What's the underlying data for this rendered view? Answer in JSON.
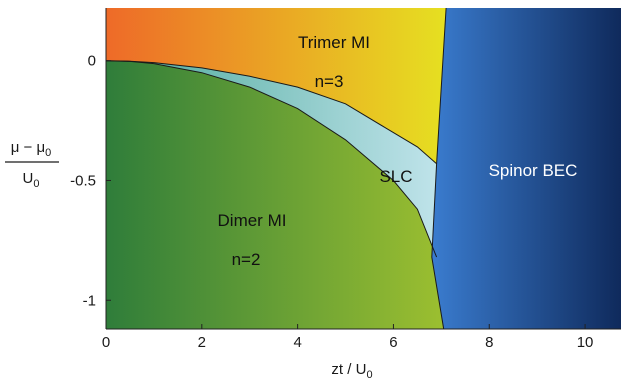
{
  "chart_data": {
    "type": "area",
    "title": "",
    "xlabel": "zt / U",
    "xlabel_sub": "0",
    "ylabel": {
      "numerator": "μ − μ",
      "numerator_sub": "0",
      "denominator": "U",
      "denominator_sub": "0"
    },
    "xlim": [
      0,
      10.75
    ],
    "ylim": [
      -1.12,
      0.22
    ],
    "xticks": [
      0,
      2,
      4,
      6,
      8,
      10
    ],
    "xtick_labels": [
      "0",
      "2",
      "4",
      "6",
      "8",
      "10"
    ],
    "yticks": [
      0,
      -0.5,
      -1
    ],
    "ytick_labels": [
      "0",
      "-0.5",
      "-1"
    ],
    "grid": false,
    "regions": [
      {
        "name": "Trimer MI",
        "label": "Trimer MI",
        "sublabel": "n=3",
        "color_start": "#ee6a28",
        "color_end": "#e6e021"
      },
      {
        "name": "Dimer MI",
        "label": "Dimer MI",
        "sublabel": "n=2",
        "color_start": "#2f7d3a",
        "color_end": "#9cbf30"
      },
      {
        "name": "SLC",
        "label": "SLC",
        "color_start": "#4aa89a",
        "color_end": "#bfe3ea"
      },
      {
        "name": "Spinor BEC",
        "label": "Spinor BEC",
        "color_start": "#3a7ccf",
        "color_end": "#0f2a5c"
      }
    ],
    "boundaries": {
      "dimer_upper": {
        "x": [
          0,
          0.5,
          1,
          2,
          3,
          4,
          5,
          6,
          6.5,
          6.9
        ],
        "y": [
          0,
          -0.003,
          -0.012,
          -0.05,
          -0.11,
          -0.2,
          -0.33,
          -0.5,
          -0.62,
          -0.82
        ]
      },
      "trimer_lower": {
        "x": [
          0,
          0.5,
          1,
          2,
          3,
          4,
          5,
          6,
          6.5,
          6.9
        ],
        "y": [
          0,
          -0.002,
          -0.008,
          -0.03,
          -0.065,
          -0.11,
          -0.18,
          -0.3,
          -0.36,
          -0.43
        ]
      },
      "bec_boundary": {
        "x": [
          7.1,
          6.9,
          6.8,
          7.05
        ],
        "y": [
          0.22,
          -0.43,
          -0.82,
          -1.12
        ]
      }
    }
  }
}
